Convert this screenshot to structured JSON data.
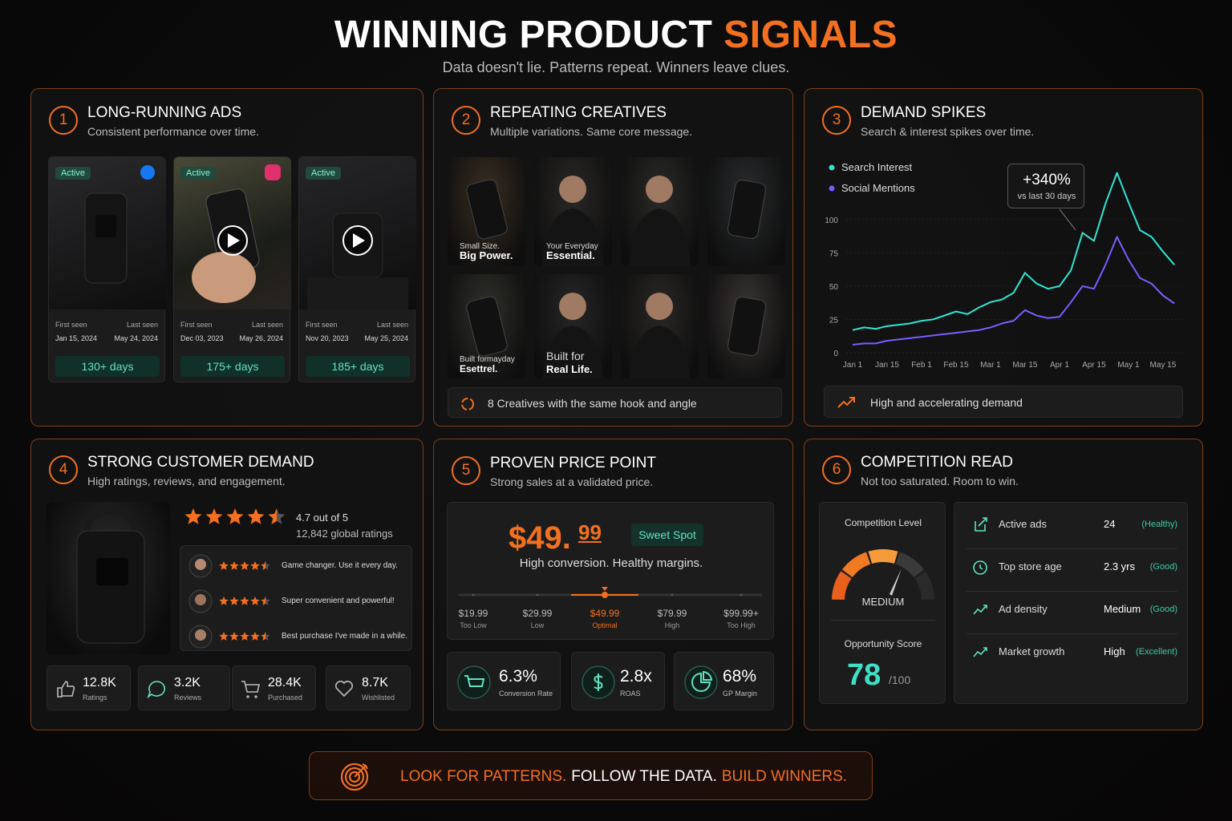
{
  "header": {
    "title": "WINNING PRODUCT",
    "title_accent": "SIGNALS",
    "subtitle": "Data doesn't lie. Patterns repeat. Winners leave clues."
  },
  "long_running_ads": {
    "number": "1",
    "title": "LONG-RUNNING ADS",
    "subtitle": "Consistent performance over time.",
    "ads": [
      {
        "status": "Active",
        "first_seen_label": "First seen",
        "first_seen": "Jan 15, 2024",
        "last_seen_label": "Last seen",
        "last_seen": "May 24, 2024",
        "duration": "130+ days"
      },
      {
        "status": "Active",
        "first_seen_label": "First seen",
        "first_seen": "Dec 03, 2023",
        "last_seen_label": "Last seen",
        "last_seen": "May 26, 2024",
        "duration": "175+ days"
      },
      {
        "status": "Active",
        "first_seen_label": "First seen",
        "first_seen": "Nov 20, 2023",
        "last_seen_label": "Last seen",
        "last_seen": "May 25, 2024",
        "duration": "185+ days"
      }
    ]
  },
  "repeating_creatives": {
    "number": "2",
    "title": "REPEATING CREATIVES",
    "subtitle": "Multiple variations. Same core message.",
    "captions": [
      {
        "small": "Small Size.",
        "big": "Big Power."
      },
      {
        "small": "Your Everyday",
        "big": "Essential."
      },
      {
        "small": "Built formayday",
        "big": "Esettrel."
      },
      {
        "small": "Built for",
        "big": "Real Life."
      }
    ],
    "footer": "8 Creatives with the same hook and angle"
  },
  "demand_spikes": {
    "number": "3",
    "title": "DEMAND SPIKES",
    "subtitle": "Search & interest spikes over time.",
    "callout": {
      "value": "+340%",
      "label": "vs last 30 days"
    },
    "footer": "High and accelerating demand"
  },
  "chart_data": {
    "type": "line",
    "categories": [
      "Jan 1",
      null,
      null,
      "Jan 15",
      null,
      null,
      "Feb 1",
      null,
      null,
      "Feb 15",
      null,
      null,
      "Mar 1",
      null,
      null,
      "Mar 15",
      null,
      null,
      "Apr 1",
      null,
      null,
      "Apr 15",
      null,
      null,
      "May 1",
      null,
      null,
      "May 15",
      null
    ],
    "series": [
      {
        "name": "Search Interest",
        "color": "#2ee6d0",
        "values": [
          17,
          19,
          18,
          20,
          21,
          22,
          24,
          25,
          28,
          31,
          29,
          34,
          38,
          40,
          45,
          60,
          52,
          48,
          50,
          62,
          90,
          84,
          112,
          135,
          113,
          92,
          87,
          76,
          66
        ]
      },
      {
        "name": "Social Mentions",
        "color": "#7c5cff",
        "values": [
          6,
          7,
          7,
          9,
          10,
          11,
          12,
          13,
          14,
          15,
          16,
          17,
          19,
          22,
          24,
          32,
          28,
          26,
          27,
          38,
          50,
          48,
          66,
          87,
          70,
          56,
          52,
          43,
          37
        ]
      }
    ],
    "ylim": [
      0,
      145
    ],
    "yticks": [
      0,
      25,
      50,
      75,
      100
    ],
    "grid": true
  },
  "customer_demand": {
    "number": "4",
    "title": "STRONG CUSTOMER DEMAND",
    "subtitle": "High ratings, reviews, and engagement.",
    "rating": "4.7 out of 5",
    "rating_count": "12,842 global ratings",
    "reviews": [
      "Game changer. Use it every day.",
      "Super convenient and powerful!",
      "Best purchase I've made in a while."
    ],
    "stats": [
      {
        "value": "12.8K",
        "label": "Ratings"
      },
      {
        "value": "3.2K",
        "label": "Reviews"
      },
      {
        "value": "28.4K",
        "label": "Purchased"
      },
      {
        "value": "8.7K",
        "label": "Wishlisted"
      }
    ]
  },
  "price_point": {
    "number": "5",
    "title": "PROVEN PRICE POINT",
    "subtitle": "Strong sales at a validated price.",
    "price_main": "$49.",
    "price_cents": "99",
    "badge": "Sweet Spot",
    "tagline": "High conversion. Healthy margins.",
    "scale": [
      {
        "price": "$19.99",
        "label": "Too Low"
      },
      {
        "price": "$29.99",
        "label": "Low"
      },
      {
        "price": "$49.99",
        "label": "Optimal"
      },
      {
        "price": "$79.99",
        "label": "High"
      },
      {
        "price": "$99.99+",
        "label": "Too High"
      }
    ],
    "metrics": [
      {
        "value": "6.3%",
        "label": "Conversion Rate"
      },
      {
        "value": "2.8x",
        "label": "ROAS"
      },
      {
        "value": "68%",
        "label": "GP Margin"
      }
    ]
  },
  "competition": {
    "number": "6",
    "title": "COMPETITION READ",
    "subtitle": "Not too saturated. Room to win.",
    "level_label": "Competition Level",
    "level": "MEDIUM",
    "score_label": "Opportunity Score",
    "score": "78",
    "score_max": "/100",
    "rows": [
      {
        "label": "Active ads",
        "value": "24",
        "rating": "(Healthy)"
      },
      {
        "label": "Top store age",
        "value": "2.3 yrs",
        "rating": "(Good)"
      },
      {
        "label": "Ad density",
        "value": "Medium",
        "rating": "(Good)"
      },
      {
        "label": "Market growth",
        "value": "High",
        "rating": "(Excellent)"
      }
    ]
  },
  "banner": {
    "parts": [
      "LOOK FOR PATTERNS.",
      "FOLLOW THE DATA.",
      "BUILD WINNERS."
    ]
  }
}
